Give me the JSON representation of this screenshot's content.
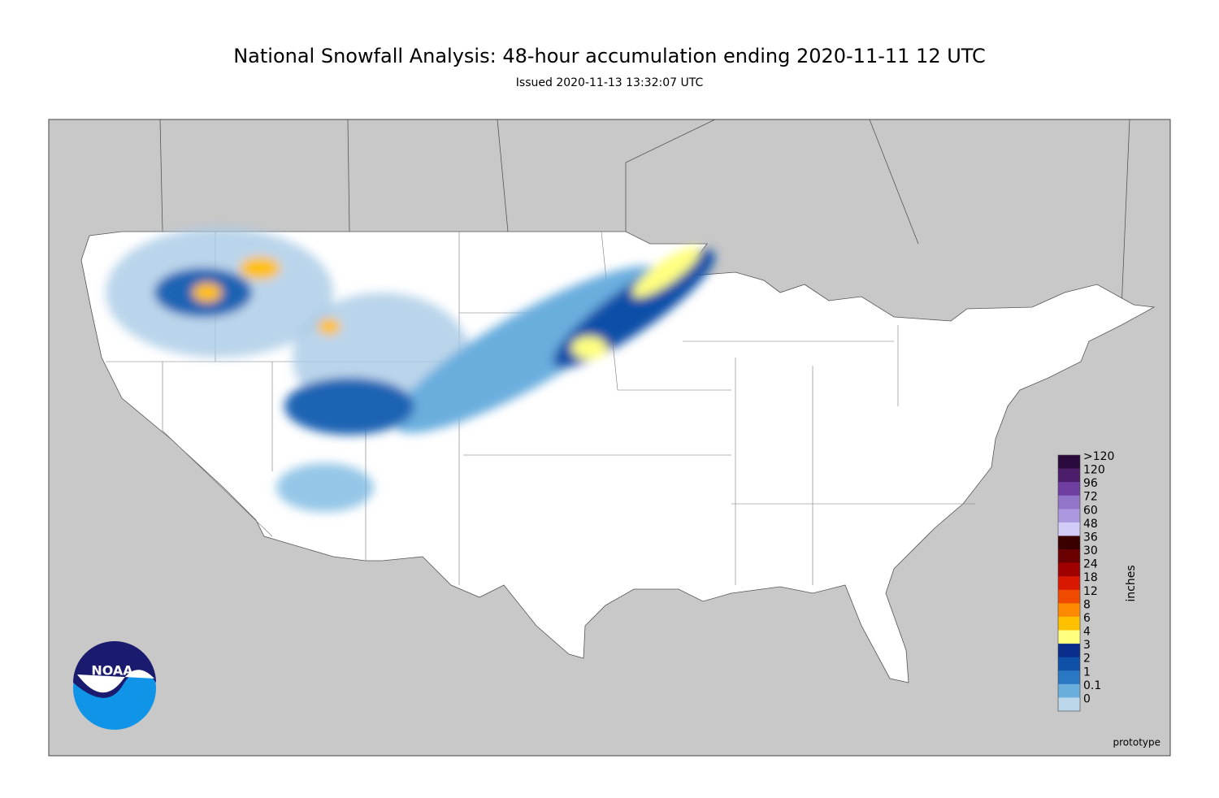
{
  "header": {
    "title": "National Snowfall Analysis: 48-hour accumulation ending 2020-11-11 12 UTC",
    "subtitle": "Issued 2020-11-13 13:32:07 UTC"
  },
  "legend": {
    "title": "inches",
    "levels": [
      {
        "label": ">120",
        "color": "#2b0a3d"
      },
      {
        "label": "120",
        "color": "#4b1d6b"
      },
      {
        "label": "96",
        "color": "#6e3fa0"
      },
      {
        "label": "72",
        "color": "#9274c8"
      },
      {
        "label": "60",
        "color": "#ab98de"
      },
      {
        "label": "48",
        "color": "#d0cbf7"
      },
      {
        "label": "36",
        "color": "#3a0000"
      },
      {
        "label": "30",
        "color": "#6b0000"
      },
      {
        "label": "24",
        "color": "#a00000"
      },
      {
        "label": "18",
        "color": "#d81800"
      },
      {
        "label": "12",
        "color": "#ef4a00"
      },
      {
        "label": "8",
        "color": "#ff8a00"
      },
      {
        "label": "6",
        "color": "#ffc000"
      },
      {
        "label": "4",
        "color": "#ffff80"
      },
      {
        "label": "3",
        "color": "#0a2d8c"
      },
      {
        "label": "2",
        "color": "#0f50a8"
      },
      {
        "label": "1",
        "color": "#2a78c4"
      },
      {
        "label": "0.1",
        "color": "#6aaede"
      },
      {
        "label": "0",
        "color": "#bcd6ea"
      }
    ]
  },
  "footer": {
    "note": "prototype"
  },
  "logo": {
    "text": "NOAA"
  }
}
